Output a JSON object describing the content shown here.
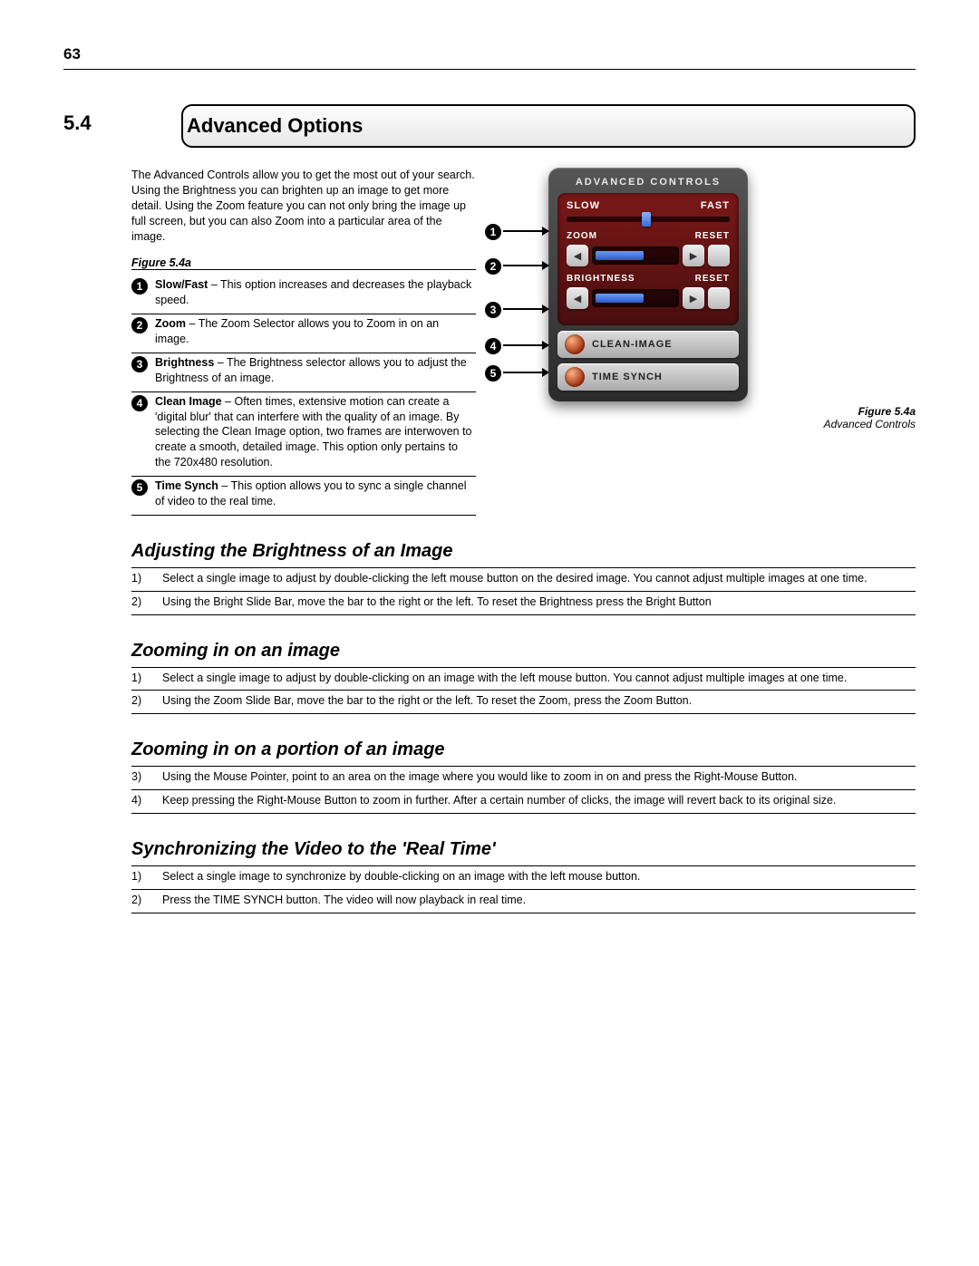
{
  "page_number": "63",
  "section_number": "5.4",
  "section_title": "Advanced Options",
  "intro_paragraph": "The Advanced Controls allow you to get the most out of your search. Using the Brightness you can brighten up an image to get more detail. Using the Zoom feature you can not only bring the image up full screen, but you can also Zoom into a particular area of the image.",
  "legend_caption": "Figure 5.4a",
  "legend": [
    {
      "n": "1",
      "bold": "Slow/Fast",
      "rest": " – This option increases and decreases the playback speed."
    },
    {
      "n": "2",
      "bold": "Zoom",
      "rest": " – The Zoom Selector allows you to Zoom in on an image."
    },
    {
      "n": "3",
      "bold": "Brightness",
      "rest": " – The Brightness selector allows you to adjust the Brightness of an image."
    },
    {
      "n": "4",
      "bold": "Clean Image",
      "rest": " – Often times, extensive motion can create a 'digital blur' that can interfere with the quality of an image. By selecting the Clean Image option, two frames are interwoven to create a smooth, detailed image. This option only pertains to the 720x480 resolution."
    },
    {
      "n": "5",
      "bold": "Time Synch",
      "rest": " – This option allows you to sync a single channel of video to the real time."
    }
  ],
  "panel": {
    "title": "ADVANCED CONTROLS",
    "slow": "SLOW",
    "fast": "FAST",
    "zoom": "ZOOM",
    "reset": "RESET",
    "brightness": "BRIGHTNESS",
    "clean": "CLEAN-IMAGE",
    "timesynch": "TIME SYNCH",
    "colors": {
      "panel_bg_top": "#555555",
      "panel_bg_bottom": "#2b2b2b",
      "inner_bg_top": "#7a1818",
      "inner_bg_bottom": "#4a0e0e",
      "thumb_top": "#8ab4ff",
      "thumb_bottom": "#3a6ad6"
    }
  },
  "figure_caption_bold": "Figure 5.4a",
  "figure_caption_sub": "Advanced Controls",
  "sections": [
    {
      "heading": "Adjusting the Brightness of an Image",
      "steps": [
        {
          "n": "1)",
          "t": "Select a single image to adjust by double-clicking the left mouse button on the desired image. You cannot adjust multiple images at one time."
        },
        {
          "n": "2)",
          "t": "Using the Bright Slide Bar, move the bar to the right or the left. To reset the Brightness press the Bright Button"
        }
      ]
    },
    {
      "heading": "Zooming in on an image",
      "steps": [
        {
          "n": "1)",
          "t": "Select a single image to adjust by double-clicking on an image with the left mouse button. You cannot adjust multiple images at one time."
        },
        {
          "n": "2)",
          "t": "Using the Zoom Slide Bar, move the bar to the right or the left. To reset the Zoom, press the Zoom Button."
        }
      ]
    },
    {
      "heading": "Zooming in on a portion of an image",
      "steps": [
        {
          "n": "3)",
          "t": "Using the Mouse Pointer, point to an area on the image where you would like to zoom in on and press the Right-Mouse Button."
        },
        {
          "n": "4)",
          "t": "Keep pressing the Right-Mouse Button to zoom in further. After a certain number of clicks, the image will revert back to its original size."
        }
      ]
    },
    {
      "heading": "Synchronizing the Video to the 'Real Time'",
      "steps": [
        {
          "n": "1)",
          "t": "Select a single image to synchronize by double-clicking on an image with the left mouse button."
        },
        {
          "n": "2)",
          "t": "Press the TIME SYNCH button. The video will now playback in real time."
        }
      ]
    }
  ]
}
